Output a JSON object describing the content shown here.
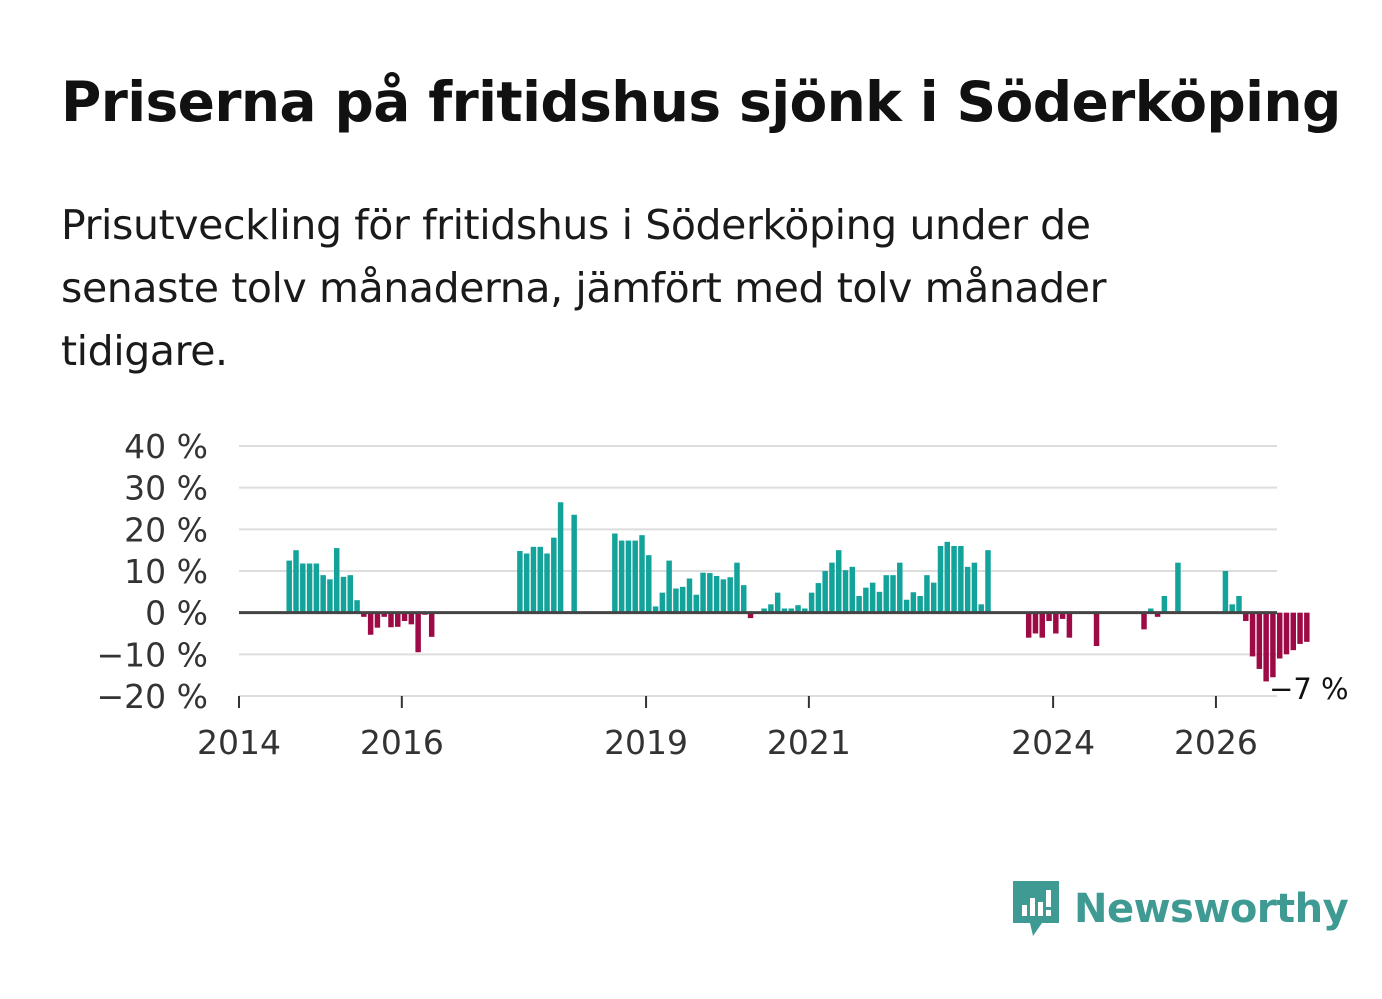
{
  "title": "Priserna på fritidshus sjönk i Söderköping",
  "subtitle": "Prisutveckling för fritidshus i Söderköping under de senaste tolv månaderna, jämfört med tolv månader tidigare.",
  "brand": {
    "name": "Newsworthy",
    "icon": "newsworthy-logo-icon",
    "color": "#3e9a93"
  },
  "colors": {
    "positive": "#13a39b",
    "negative": "#9e0a45",
    "grid": "#dddddd",
    "zero": "#444444"
  },
  "chart_data": {
    "type": "bar",
    "title": "Priserna på fritidshus sjönk i Söderköping",
    "xlabel": "",
    "ylabel": "",
    "ylim": [
      -20,
      40
    ],
    "xlim": [
      2014.0,
      2026.75
    ],
    "grid": true,
    "y_ticks": [
      40,
      30,
      20,
      10,
      0,
      -10,
      -20
    ],
    "y_tick_labels": [
      "40 %",
      "30 %",
      "20 %",
      "10 %",
      "0 %",
      "−10 %",
      "−20 %"
    ],
    "x_ticks": [
      2014,
      2016,
      2019,
      2021,
      2024,
      2026
    ],
    "x_tick_labels": [
      "2014",
      "2016",
      "2019",
      "2021",
      "2024",
      "2026"
    ],
    "annotation": {
      "label": "−7 %",
      "value": -7
    },
    "series": [
      {
        "name": "Prisutveckling",
        "start": 2014.0,
        "step": 0.08333,
        "values": [
          null,
          null,
          null,
          null,
          null,
          null,
          null,
          12.5,
          15,
          11.8,
          11.8,
          11.8,
          9,
          8,
          15.5,
          8.6,
          9,
          3,
          -1,
          -5.3,
          -3.6,
          -1,
          -3.5,
          -3.4,
          -2,
          -2.8,
          -9.5,
          -0.5,
          -5.8,
          null,
          null,
          null,
          null,
          null,
          null,
          null,
          null,
          null,
          null,
          null,
          null,
          14.8,
          14.2,
          15.8,
          15.8,
          14.2,
          18,
          26.5,
          null,
          23.5,
          null,
          null,
          null,
          null,
          null,
          19,
          17.3,
          17.3,
          17.3,
          18.6,
          13.8,
          1.5,
          4.8,
          12.5,
          5.8,
          6.2,
          8.2,
          4.3,
          9.6,
          9.5,
          8.8,
          8,
          8.5,
          12,
          6.6,
          -1.3,
          -0.3,
          1,
          2,
          4.8,
          1,
          1,
          1.8,
          1,
          4.8,
          7.1,
          10,
          12,
          15,
          10.2,
          11,
          4,
          6,
          7.2,
          5,
          9,
          9,
          12,
          3.1,
          4.9,
          4,
          9,
          7.2,
          16,
          17,
          16,
          16,
          11,
          12,
          2,
          15,
          null,
          null,
          null,
          null,
          null,
          -6,
          -5,
          -6,
          -2,
          -5,
          -1.5,
          -6,
          null,
          null,
          null,
          -8,
          null,
          null,
          null,
          null,
          null,
          null,
          -4,
          1,
          -1,
          4,
          null,
          12,
          null,
          null,
          null,
          null,
          null,
          null,
          10,
          2,
          4,
          -2,
          -10.5,
          -13.5,
          -16.5,
          -15.5,
          -11,
          -10,
          -9,
          -7.5,
          -7
        ]
      }
    ]
  }
}
